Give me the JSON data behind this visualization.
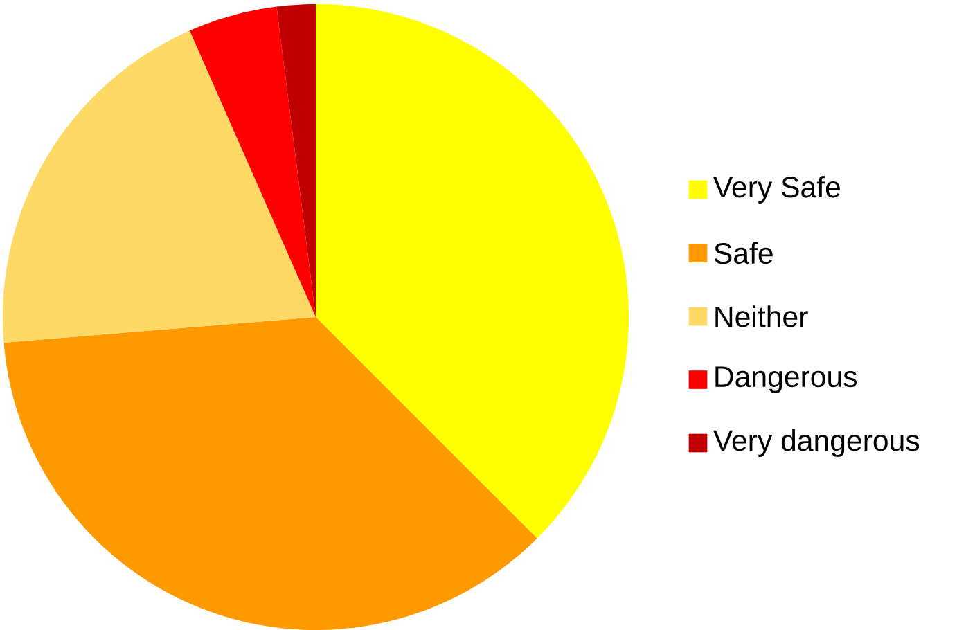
{
  "chart_data": {
    "type": "pie",
    "categories": [
      "Very Safe",
      "Safe",
      "Neither",
      "Dangerous",
      "Very dangerous"
    ],
    "values": [
      37.5,
      36.2,
      19.7,
      4.6,
      2.0
    ],
    "colors": [
      "#ffff00",
      "#ff9900",
      "#ffd966",
      "#ff0000",
      "#c00000"
    ],
    "legend": "right"
  }
}
